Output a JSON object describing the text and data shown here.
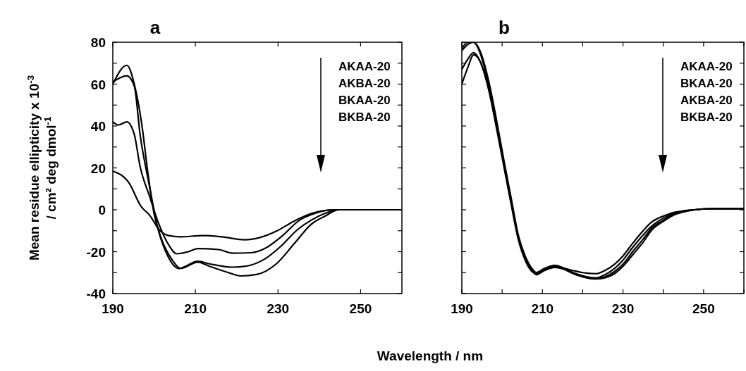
{
  "chart_data": [
    {
      "type": "line",
      "title": "a",
      "ylabel": "Mean residue ellipticity x 10$^{-3}$\n/ cm² deg dmol$^{-1}$",
      "xlim": [
        190,
        260
      ],
      "ylim": [
        -40,
        80
      ],
      "xticks": [
        190,
        210,
        230,
        250
      ],
      "yticks": [
        -40,
        {
          "value": -30,
          "label": null
        },
        -20,
        {
          "value": -10,
          "label": null
        },
        0,
        {
          "value": 10,
          "label": null
        },
        20,
        {
          "value": 30,
          "label": null
        },
        40,
        {
          "value": 50,
          "label": null
        },
        60,
        {
          "value": 70,
          "label": null
        },
        80
      ],
      "annotations": [
        "AKAA-20",
        "AKBA-20",
        "BKAA-20",
        "BKBA-20"
      ],
      "marker": "none",
      "line_style": "solid",
      "grid": false,
      "series": [
        {
          "color": "#000000",
          "x": [
            190,
            193.9,
            196.8,
            199,
            201.2,
            203.5,
            206.3,
            211.9,
            216.4,
            222,
            225.3,
            229.8,
            233.7,
            238.2,
            243.8,
            250,
            260
          ],
          "values": [
            18.5,
            12.9,
            1.7,
            -2.8,
            -9.5,
            -12.3,
            -12.9,
            -12.3,
            -12.9,
            -14.3,
            -13.4,
            -10,
            -5.6,
            -1.7,
            0,
            0,
            0
          ]
        },
        {
          "color": "#000000",
          "x": [
            190,
            191.4,
            193.4,
            195.2,
            196.6,
            198.8,
            201,
            203.3,
            205.5,
            208.3,
            210.6,
            215.6,
            219,
            223.5,
            226.8,
            230.7,
            235.2,
            239,
            243.5,
            250,
            260
          ],
          "values": [
            42,
            40.5,
            42,
            36,
            20.7,
            7,
            -6,
            -16,
            -21,
            -20,
            -18.5,
            -19,
            -20.7,
            -20.5,
            -18.5,
            -13,
            -5,
            -1.7,
            0,
            0,
            0
          ]
        },
        {
          "color": "#000000",
          "x": [
            190,
            193.4,
            195.2,
            196.6,
            198.8,
            201,
            203.3,
            206,
            210.6,
            213.4,
            219,
            222.3,
            226.8,
            230.7,
            234.7,
            238,
            241.4,
            244.7,
            250,
            260
          ],
          "values": [
            61,
            64,
            59,
            36,
            12,
            -9.5,
            -22,
            -28,
            -24.6,
            -25.8,
            -27.4,
            -26.9,
            -23.5,
            -17.4,
            -9.5,
            -5,
            -1.7,
            0,
            0,
            0
          ]
        },
        {
          "color": "#000000",
          "x": [
            190,
            193.4,
            195.2,
            197,
            198.6,
            200,
            201.6,
            204.4,
            206.4,
            210.6,
            213.4,
            218,
            221,
            225,
            229.6,
            234,
            238,
            241.4,
            244.7,
            250,
            260
          ],
          "values": [
            60,
            69,
            60,
            41,
            16,
            -2,
            -13,
            -24,
            -28,
            -25,
            -27,
            -30,
            -31.6,
            -30.8,
            -25.8,
            -16,
            -7,
            -3,
            0,
            0,
            0
          ]
        }
      ]
    },
    {
      "type": "line",
      "title": "b",
      "xlabel": "Wavelength / nm",
      "xlim": [
        190,
        260
      ],
      "ylim": [
        -40,
        80
      ],
      "xticks": [
        190,
        {
          "value": 200,
          "label": null
        },
        210,
        {
          "value": 220,
          "label": null
        },
        230,
        {
          "value": 240,
          "label": null
        },
        250,
        {
          "value": 260,
          "label": null
        }
      ],
      "yticks": [
        {
          "value": -40,
          "label": null
        },
        {
          "value": -30,
          "label": null
        },
        {
          "value": -20,
          "label": null
        },
        {
          "value": -10,
          "label": null
        },
        {
          "value": 0,
          "label": null
        },
        {
          "value": 10,
          "label": null
        },
        {
          "value": 20,
          "label": null
        },
        {
          "value": 30,
          "label": null
        },
        {
          "value": 40,
          "label": null
        },
        {
          "value": 50,
          "label": null
        },
        {
          "value": 60,
          "label": null
        },
        {
          "value": 70,
          "label": null
        },
        {
          "value": 80,
          "label": null
        }
      ],
      "tick_labels": "x",
      "annotations": [
        "AKAA-20",
        "BKAA-20",
        "AKBA-20",
        "BKBA-20"
      ],
      "marker": "none",
      "line_style": "solid",
      "grid": false,
      "x": [
        190,
        191.5,
        192.9,
        194.5,
        196.6,
        198.5,
        200.6,
        202.3,
        204,
        205.7,
        207.4,
        208.5,
        210.5,
        213.1,
        215.5,
        217.6,
        220,
        223.3,
        225.5,
        227.9,
        230,
        232.4,
        235,
        237,
        240,
        242.1,
        245,
        247.8,
        252,
        256,
        260
      ],
      "series": [
        {
          "color": "#000000",
          "values": [
            76,
            79,
            80,
            76,
            62,
            44,
            22,
            5,
            -12,
            -22,
            -28,
            -30,
            -28.5,
            -27,
            -28,
            -29,
            -30,
            -30.5,
            -29,
            -26,
            -22,
            -16,
            -10,
            -6,
            -3,
            -1.5,
            -0.5,
            0,
            0.5,
            0.5,
            0.5
          ]
        },
        {
          "color": "#000000",
          "values": [
            77,
            80,
            80,
            75,
            60,
            42,
            20,
            3,
            -13,
            -23,
            -29,
            -31,
            -29,
            -27.5,
            -28.5,
            -30,
            -31.5,
            -32.5,
            -31,
            -28,
            -24,
            -18,
            -12,
            -8,
            -4,
            -2,
            -0.5,
            0,
            0.5,
            0.5,
            0.5
          ]
        },
        {
          "color": "#000000",
          "values": [
            67,
            72,
            75,
            71,
            58,
            40,
            19,
            2,
            -14,
            -24,
            -29.5,
            -30.5,
            -28.5,
            -27,
            -28.5,
            -30.5,
            -32,
            -33,
            -32,
            -29.5,
            -26,
            -20,
            -14,
            -9,
            -5,
            -2.5,
            -1,
            0,
            0.5,
            0.5,
            0.5
          ]
        },
        {
          "color": "#000000",
          "values": [
            60,
            68,
            74,
            71,
            58,
            41,
            20,
            3,
            -13,
            -23,
            -29,
            -30,
            -28,
            -26.5,
            -28,
            -30,
            -32,
            -33,
            -32.5,
            -30.5,
            -27,
            -21.5,
            -15.5,
            -10,
            -5.5,
            -3,
            -1,
            0,
            0.5,
            0.5,
            0.5
          ]
        }
      ]
    }
  ]
}
